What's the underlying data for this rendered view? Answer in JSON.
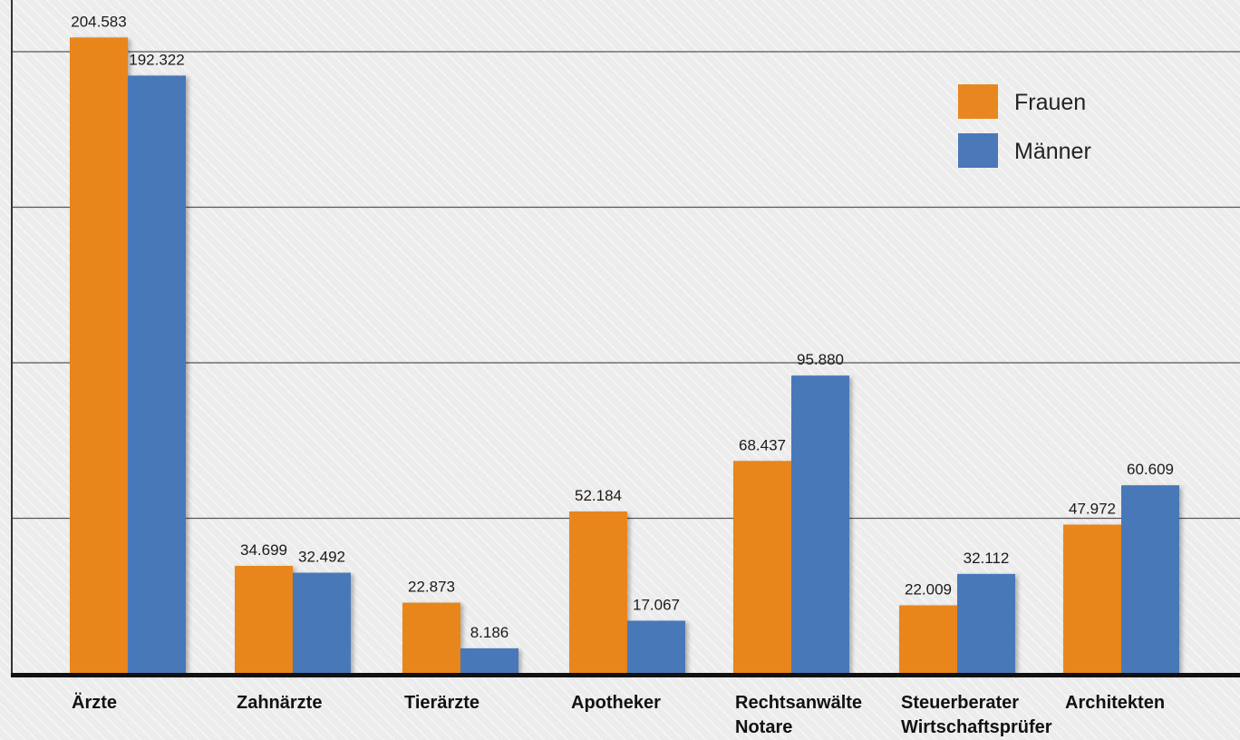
{
  "chart_data": {
    "type": "bar",
    "categories": [
      [
        "Ärzte"
      ],
      [
        "Zahnärzte"
      ],
      [
        "Tierärzte"
      ],
      [
        "Apotheker"
      ],
      [
        "Rechtsanwälte",
        "Notare"
      ],
      [
        "Steuerberater",
        "Wirtschaftsprüfer"
      ],
      [
        "Architekten"
      ]
    ],
    "series": [
      {
        "name": "Frauen",
        "color": "#e8861f",
        "values": [
          204583,
          34699,
          22873,
          52184,
          68437,
          22009,
          47972
        ],
        "labels": [
          "204.583",
          "34.699",
          "22.873",
          "52.184",
          "68.437",
          "22.009",
          "47.972"
        ]
      },
      {
        "name": "Männer",
        "color": "#4a78b8",
        "values": [
          192322,
          32492,
          8186,
          17067,
          95880,
          32112,
          60609
        ],
        "labels": [
          "192.322",
          "32.492",
          "8.186",
          "17.067",
          "95.880",
          "32.112",
          "60.609"
        ]
      }
    ],
    "ylim": [
      0,
      210000
    ],
    "gridlines": [
      50000,
      100000,
      150000,
      200000
    ],
    "grid": true,
    "legend": "top-right",
    "title": "",
    "xlabel": "",
    "ylabel": ""
  }
}
